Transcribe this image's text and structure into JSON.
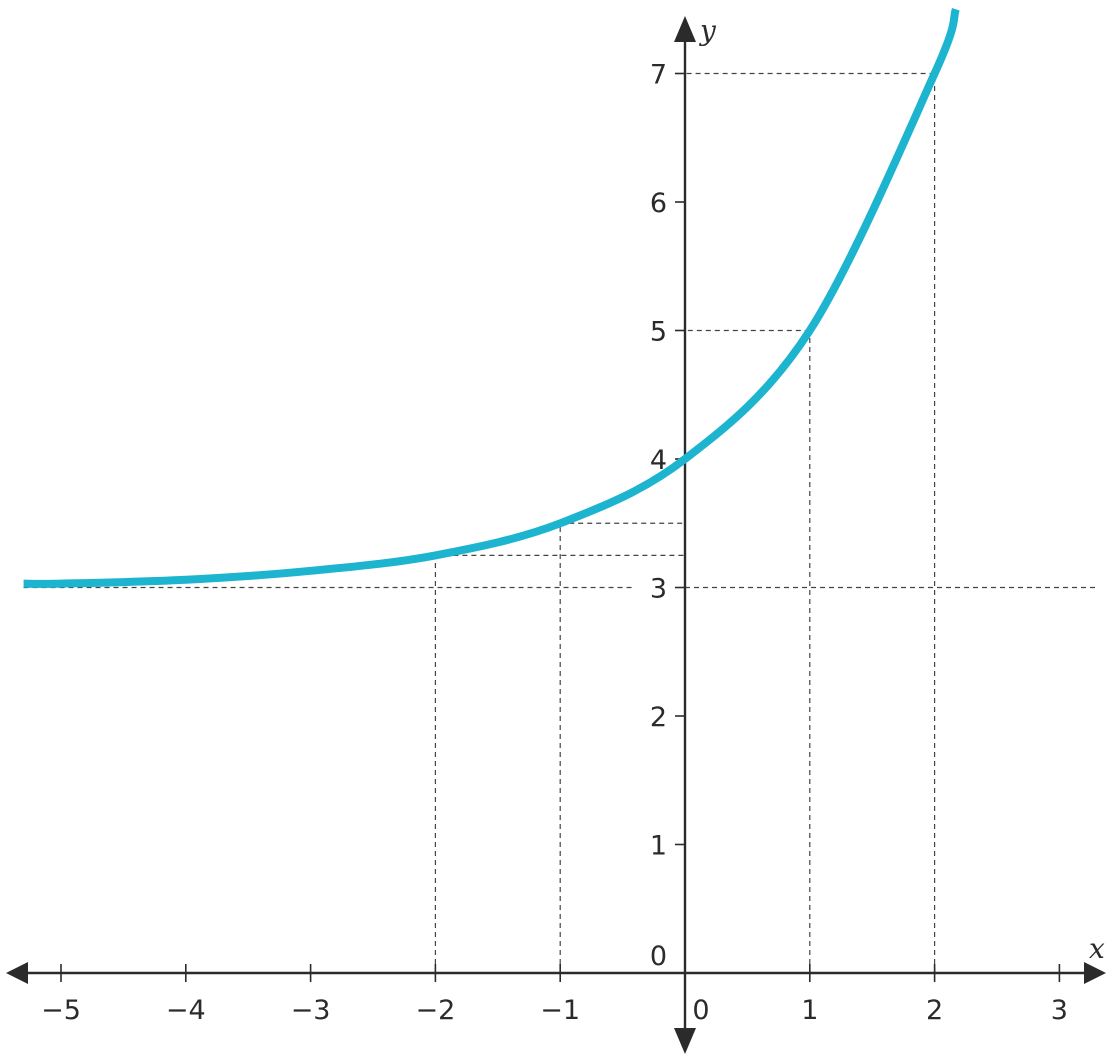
{
  "chart_data": {
    "type": "line",
    "xlabel": "x",
    "ylabel": "y",
    "xlim": [
      -5.3,
      3.3
    ],
    "ylim": [
      0,
      7.5
    ],
    "x_ticks": [
      -5,
      -4,
      -3,
      -2,
      -1,
      0,
      1,
      2,
      3
    ],
    "x_tick_labels": [
      "−5",
      "−4",
      "−3",
      "−2",
      "−1",
      "0",
      "1",
      "2",
      "3"
    ],
    "y_ticks": [
      0,
      1,
      2,
      3,
      4,
      5,
      6,
      7
    ],
    "y_tick_labels": [
      "0",
      "1",
      "2",
      "3",
      "4",
      "5",
      "6",
      "7"
    ],
    "grid": false,
    "asymptote_y": 3,
    "series": [
      {
        "function": "y = 2^x + 3",
        "color": "#1db4d0",
        "x": [
          -5.3,
          -5,
          -4,
          -3,
          -2,
          -1,
          0,
          1,
          2,
          2.17
        ],
        "y": [
          3.03,
          3.03,
          3.06,
          3.13,
          3.25,
          3.5,
          4,
          5,
          7,
          7.5
        ]
      }
    ],
    "marked_points": [
      {
        "x": -2,
        "y": 3.25
      },
      {
        "x": -1,
        "y": 3.5
      },
      {
        "x": 1,
        "y": 5
      },
      {
        "x": 2,
        "y": 7
      }
    ],
    "colors": {
      "curve": "#1db4d0",
      "axis": "#2b2b2b",
      "guide": "#444444"
    }
  }
}
